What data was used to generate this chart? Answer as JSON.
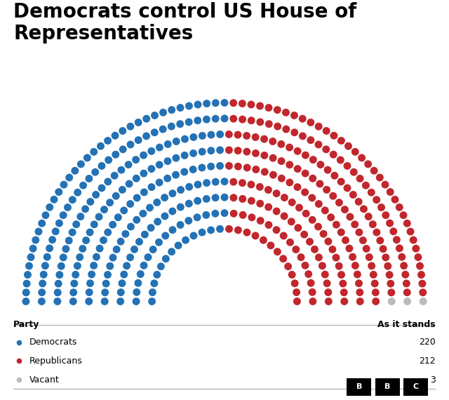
{
  "title": "Democrats control US House of\nRepresentatives",
  "title_fontsize": 20,
  "title_fontweight": "bold",
  "democrats": 220,
  "republicans": 212,
  "vacant": 3,
  "total": 435,
  "dem_color": "#2472B5",
  "rep_color": "#C1272D",
  "vacant_color": "#BBBBBB",
  "background_color": "#FFFFFF",
  "legend_items": [
    {
      "label": "Democrats",
      "color": "#2472B5",
      "count": "220"
    },
    {
      "label": "Republicans",
      "color": "#C1272D",
      "count": "212"
    },
    {
      "label": "Vacant",
      "color": "#BBBBBB",
      "count": "3"
    }
  ],
  "col_header_left": "Party",
  "col_header_right": "As it stands"
}
